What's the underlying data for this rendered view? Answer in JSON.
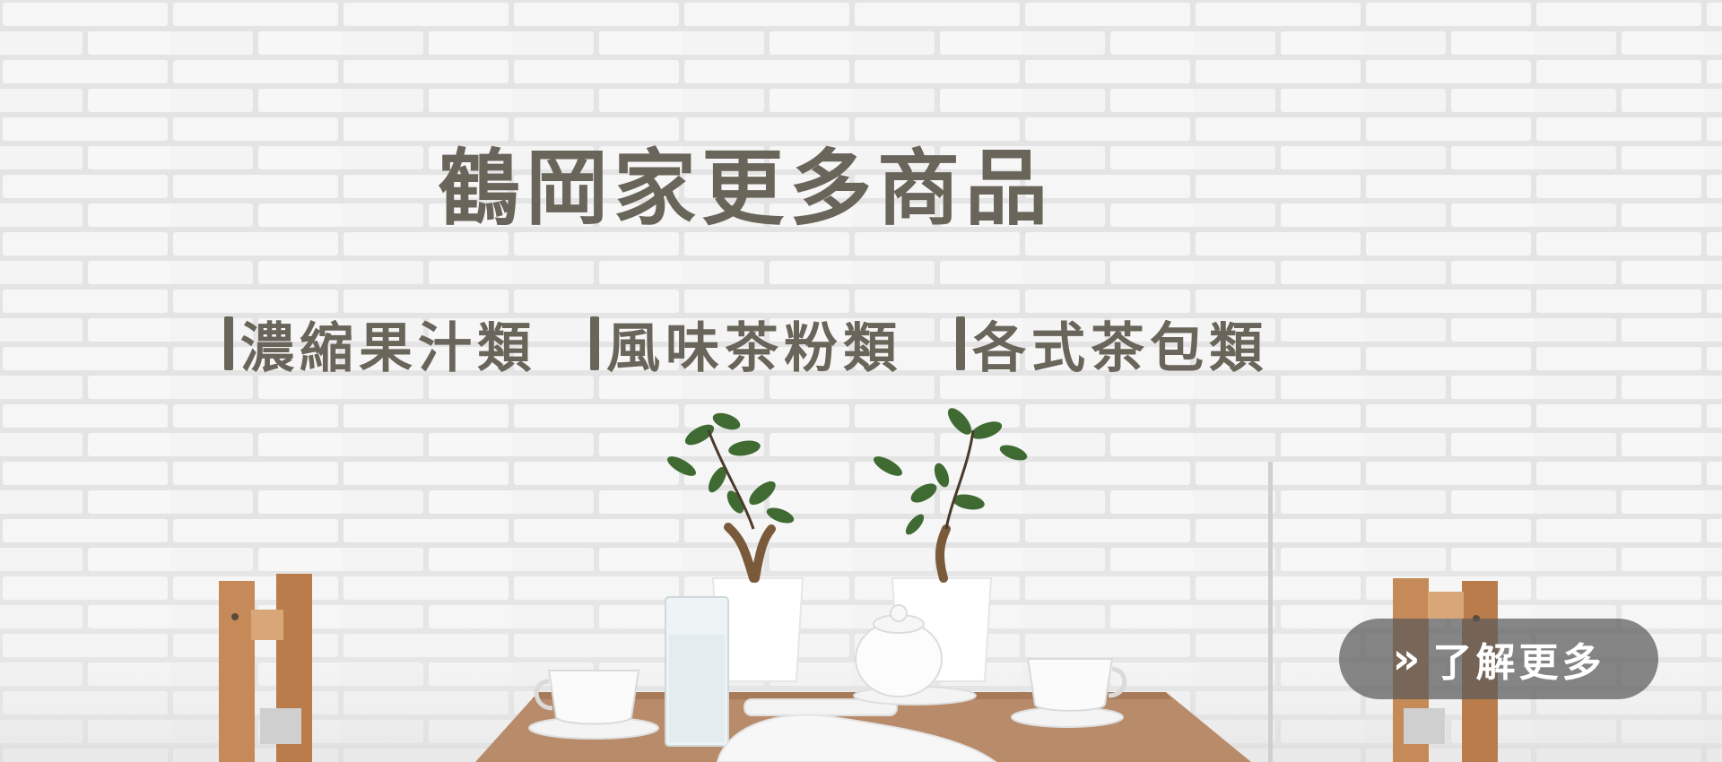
{
  "banner": {
    "headline": "鶴岡家更多商品",
    "categories": [
      {
        "label": "濃縮果汁類"
      },
      {
        "label": "風味茶粉類"
      },
      {
        "label": "各式茶包類"
      }
    ],
    "cta": {
      "icon": "double-chevron-right-icon",
      "icon_glyph": "»",
      "label": "了解更多"
    }
  },
  "colors": {
    "text": "#6a655b",
    "wall": "#f2f2f2",
    "cta_bg": "#5a5a5a",
    "cta_text": "#ffffff",
    "table": "#b88c6b",
    "chair": "#c58a57"
  }
}
